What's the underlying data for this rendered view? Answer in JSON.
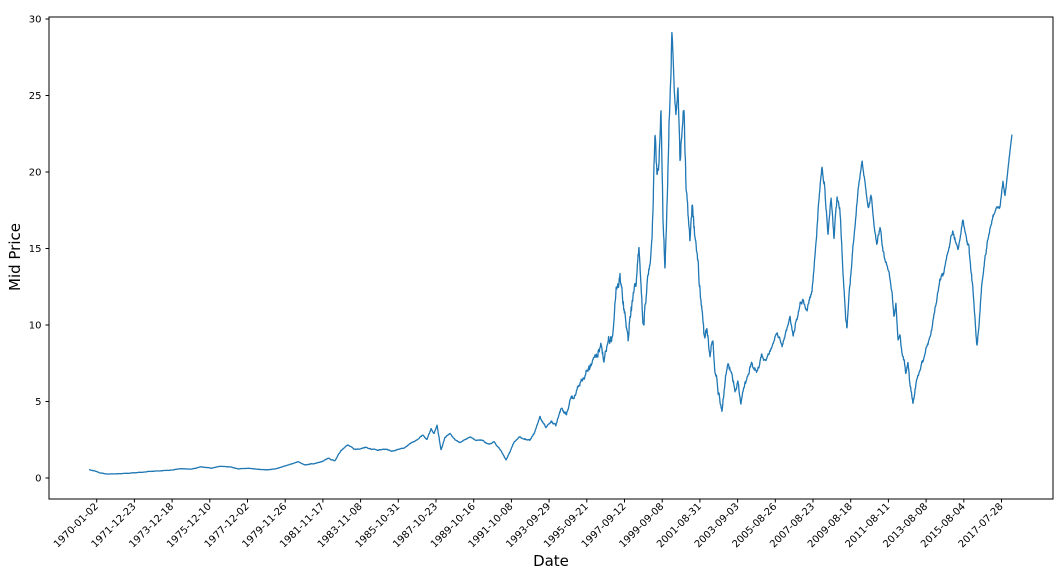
{
  "chart_data": {
    "type": "line",
    "title": "",
    "xlabel": "Date",
    "ylabel": "Mid Price",
    "grid": false,
    "legend": "none",
    "background_color": "#ffffff",
    "axis_color": "#000000",
    "tick_label_color": "#000000",
    "line_color": "#1f77b4",
    "y_ticks": [
      0,
      5,
      10,
      15,
      20,
      25,
      30
    ],
    "ylim": [
      -1.4,
      30.1
    ],
    "x_tick_labels": [
      "1970-01-02",
      "1971-12-23",
      "1973-12-18",
      "1975-12-10",
      "1977-12-02",
      "1979-11-26",
      "1981-11-17",
      "1983-11-08",
      "1985-10-31",
      "1987-10-23",
      "1989-10-16",
      "1991-10-08",
      "1993-09-29",
      "1995-09-21",
      "1997-09-12",
      "1999-09-08",
      "2001-08-31",
      "2003-09-03",
      "2005-08-26",
      "2007-08-23",
      "2009-08-18",
      "2011-08-11",
      "2013-08-08",
      "2015-08-04",
      "2017-07-28"
    ],
    "series": [
      {
        "name": "Mid Price",
        "x_start_label": "1970-01-02",
        "x_end_label": "2017-07-28",
        "anchors": [
          [
            0.0,
            0.55
          ],
          [
            0.0065,
            0.45
          ],
          [
            0.0119,
            0.33
          ],
          [
            0.0206,
            0.25
          ],
          [
            0.0314,
            0.27
          ],
          [
            0.0423,
            0.31
          ],
          [
            0.0553,
            0.37
          ],
          [
            0.0661,
            0.43
          ],
          [
            0.0791,
            0.48
          ],
          [
            0.0899,
            0.52
          ],
          [
            0.0997,
            0.62
          ],
          [
            0.1105,
            0.58
          ],
          [
            0.1213,
            0.73
          ],
          [
            0.1322,
            0.65
          ],
          [
            0.143,
            0.77
          ],
          [
            0.1538,
            0.72
          ],
          [
            0.1614,
            0.59
          ],
          [
            0.1723,
            0.64
          ],
          [
            0.1831,
            0.58
          ],
          [
            0.1939,
            0.53
          ],
          [
            0.2048,
            0.64
          ],
          [
            0.2156,
            0.84
          ],
          [
            0.2264,
            1.06
          ],
          [
            0.234,
            0.84
          ],
          [
            0.2448,
            0.95
          ],
          [
            0.2524,
            1.06
          ],
          [
            0.2589,
            1.28
          ],
          [
            0.2665,
            1.15
          ],
          [
            0.273,
            1.8
          ],
          [
            0.2806,
            2.15
          ],
          [
            0.2871,
            1.9
          ],
          [
            0.2936,
            1.85
          ],
          [
            0.3001,
            2.0
          ],
          [
            0.3066,
            1.9
          ],
          [
            0.3131,
            1.8
          ],
          [
            0.3207,
            1.9
          ],
          [
            0.3283,
            1.75
          ],
          [
            0.3348,
            1.85
          ],
          [
            0.3413,
            1.95
          ],
          [
            0.3478,
            2.25
          ],
          [
            0.3554,
            2.5
          ],
          [
            0.3619,
            2.8
          ],
          [
            0.3662,
            2.5
          ],
          [
            0.3706,
            3.25
          ],
          [
            0.3738,
            2.9
          ],
          [
            0.3771,
            3.45
          ],
          [
            0.3814,
            1.85
          ],
          [
            0.3857,
            2.65
          ],
          [
            0.3911,
            2.9
          ],
          [
            0.3966,
            2.5
          ],
          [
            0.402,
            2.35
          ],
          [
            0.4074,
            2.5
          ],
          [
            0.4128,
            2.7
          ],
          [
            0.4193,
            2.45
          ],
          [
            0.4258,
            2.5
          ],
          [
            0.4323,
            2.2
          ],
          [
            0.4388,
            2.35
          ],
          [
            0.4453,
            1.9
          ],
          [
            0.4518,
            1.2
          ],
          [
            0.4561,
            1.7
          ],
          [
            0.4605,
            2.3
          ],
          [
            0.4659,
            2.7
          ],
          [
            0.4713,
            2.5
          ],
          [
            0.4778,
            2.5
          ],
          [
            0.4832,
            3.0
          ],
          [
            0.4886,
            4.0
          ],
          [
            0.4951,
            3.3
          ],
          [
            0.5005,
            3.8
          ],
          [
            0.5059,
            3.4
          ],
          [
            0.5114,
            4.6
          ],
          [
            0.5168,
            4.2
          ],
          [
            0.5222,
            5.1
          ],
          [
            0.5276,
            5.7
          ],
          [
            0.533,
            6.3
          ],
          [
            0.5385,
            6.9
          ],
          [
            0.5439,
            7.5
          ],
          [
            0.5493,
            8.1
          ],
          [
            0.5547,
            8.6
          ],
          [
            0.558,
            7.8
          ],
          [
            0.5623,
            9.2
          ],
          [
            0.5666,
            8.8
          ],
          [
            0.571,
            12.5
          ],
          [
            0.5753,
            13.5
          ],
          [
            0.5796,
            11.0
          ],
          [
            0.584,
            9.4
          ],
          [
            0.5883,
            11.5
          ],
          [
            0.5926,
            13.0
          ],
          [
            0.5959,
            15.6
          ],
          [
            0.6002,
            10.3
          ],
          [
            0.6035,
            11.8
          ],
          [
            0.6067,
            13.5
          ],
          [
            0.61,
            15.5
          ],
          [
            0.6132,
            22.3
          ],
          [
            0.6154,
            19.5
          ],
          [
            0.6175,
            21.0
          ],
          [
            0.6197,
            24.5
          ],
          [
            0.6219,
            17.0
          ],
          [
            0.624,
            13.8
          ],
          [
            0.6262,
            17.5
          ],
          [
            0.6284,
            23.0
          ],
          [
            0.6305,
            26.5
          ],
          [
            0.6316,
            29.2
          ],
          [
            0.6338,
            26.0
          ],
          [
            0.636,
            23.5
          ],
          [
            0.6381,
            25.3
          ],
          [
            0.6403,
            21.0
          ],
          [
            0.6424,
            22.8
          ],
          [
            0.6446,
            23.8
          ],
          [
            0.6468,
            19.3
          ],
          [
            0.6489,
            17.2
          ],
          [
            0.6511,
            16.0
          ],
          [
            0.6533,
            18.5
          ],
          [
            0.6554,
            17.0
          ],
          [
            0.6587,
            14.3
          ],
          [
            0.6619,
            12.5
          ],
          [
            0.6652,
            10.0
          ],
          [
            0.6674,
            9.0
          ],
          [
            0.6695,
            9.7
          ],
          [
            0.6728,
            8.1
          ],
          [
            0.676,
            9.0
          ],
          [
            0.6782,
            6.9
          ],
          [
            0.6814,
            5.7
          ],
          [
            0.6858,
            4.4
          ],
          [
            0.689,
            6.2
          ],
          [
            0.6923,
            7.4
          ],
          [
            0.6966,
            6.6
          ],
          [
            0.6999,
            5.5
          ],
          [
            0.7031,
            6.2
          ],
          [
            0.7064,
            4.8
          ],
          [
            0.7096,
            6.0
          ],
          [
            0.7129,
            6.6
          ],
          [
            0.7183,
            7.4
          ],
          [
            0.7226,
            6.9
          ],
          [
            0.7259,
            7.2
          ],
          [
            0.7291,
            8.1
          ],
          [
            0.7324,
            7.6
          ],
          [
            0.7356,
            7.9
          ],
          [
            0.74,
            8.6
          ],
          [
            0.7454,
            9.5
          ],
          [
            0.7508,
            8.5
          ],
          [
            0.7541,
            9.2
          ],
          [
            0.7573,
            9.9
          ],
          [
            0.7595,
            10.6
          ],
          [
            0.7627,
            9.4
          ],
          [
            0.766,
            10.3
          ],
          [
            0.7693,
            11.1
          ],
          [
            0.7736,
            11.7
          ],
          [
            0.7779,
            11.0
          ],
          [
            0.7833,
            12.3
          ],
          [
            0.7866,
            14.5
          ],
          [
            0.7898,
            17.5
          ],
          [
            0.7942,
            20.2
          ],
          [
            0.7974,
            18.6
          ],
          [
            0.8007,
            15.9
          ],
          [
            0.8039,
            18.7
          ],
          [
            0.8072,
            16.0
          ],
          [
            0.8104,
            18.4
          ],
          [
            0.8137,
            17.3
          ],
          [
            0.8169,
            13.5
          ],
          [
            0.8191,
            11.2
          ],
          [
            0.8213,
            9.9
          ],
          [
            0.8234,
            12.1
          ],
          [
            0.8267,
            14.3
          ],
          [
            0.8299,
            16.3
          ],
          [
            0.8332,
            18.8
          ],
          [
            0.8375,
            20.7
          ],
          [
            0.8407,
            19.4
          ],
          [
            0.844,
            17.6
          ],
          [
            0.8472,
            18.7
          ],
          [
            0.8505,
            16.6
          ],
          [
            0.8537,
            15.3
          ],
          [
            0.857,
            16.4
          ],
          [
            0.8602,
            14.9
          ],
          [
            0.8635,
            14.0
          ],
          [
            0.8667,
            13.4
          ],
          [
            0.87,
            12.1
          ],
          [
            0.8721,
            10.5
          ],
          [
            0.8743,
            11.3
          ],
          [
            0.8765,
            9.1
          ],
          [
            0.8786,
            9.4
          ],
          [
            0.8808,
            8.1
          ],
          [
            0.883,
            7.6
          ],
          [
            0.8851,
            7.0
          ],
          [
            0.8873,
            7.7
          ],
          [
            0.8894,
            6.1
          ],
          [
            0.8927,
            5.0
          ],
          [
            0.897,
            6.3
          ],
          [
            0.9014,
            7.3
          ],
          [
            0.9057,
            8.0
          ],
          [
            0.909,
            8.8
          ],
          [
            0.9122,
            9.6
          ],
          [
            0.9155,
            10.8
          ],
          [
            0.9187,
            11.8
          ],
          [
            0.922,
            13.0
          ],
          [
            0.9263,
            13.6
          ],
          [
            0.9306,
            14.8
          ],
          [
            0.9339,
            15.9
          ],
          [
            0.936,
            16.3
          ],
          [
            0.9393,
            15.4
          ],
          [
            0.9415,
            15.0
          ],
          [
            0.9447,
            16.2
          ],
          [
            0.9469,
            16.8
          ],
          [
            0.9501,
            15.8
          ],
          [
            0.9534,
            14.9
          ],
          [
            0.9566,
            13.0
          ],
          [
            0.9599,
            10.5
          ],
          [
            0.9621,
            8.7
          ],
          [
            0.9642,
            10.0
          ],
          [
            0.9664,
            12.0
          ],
          [
            0.9696,
            13.8
          ],
          [
            0.9729,
            15.2
          ],
          [
            0.9762,
            16.2
          ],
          [
            0.9794,
            16.9
          ],
          [
            0.9827,
            17.5
          ],
          [
            0.987,
            17.9
          ],
          [
            0.9902,
            19.3
          ],
          [
            0.9924,
            18.4
          ],
          [
            0.9946,
            19.6
          ],
          [
            0.9968,
            20.8
          ],
          [
            1.0,
            22.4
          ]
        ],
        "volatility": [
          [
            0.0,
            0.02
          ],
          [
            0.22,
            0.03
          ],
          [
            0.27,
            0.06
          ],
          [
            0.33,
            0.05
          ],
          [
            0.37,
            0.08
          ],
          [
            0.41,
            0.06
          ],
          [
            0.45,
            0.07
          ],
          [
            0.48,
            0.12
          ],
          [
            0.51,
            0.22
          ],
          [
            0.54,
            0.45
          ],
          [
            0.565,
            0.7
          ],
          [
            0.585,
            0.85
          ],
          [
            0.6,
            1.0
          ],
          [
            0.615,
            1.1
          ],
          [
            0.628,
            0.85
          ],
          [
            0.64,
            1.1
          ],
          [
            0.655,
            1.15
          ],
          [
            0.67,
            0.75
          ],
          [
            0.685,
            0.5
          ],
          [
            0.7,
            0.45
          ],
          [
            0.715,
            0.4
          ],
          [
            0.73,
            0.3
          ],
          [
            0.75,
            0.28
          ],
          [
            0.77,
            0.35
          ],
          [
            0.79,
            0.45
          ],
          [
            0.81,
            0.55
          ],
          [
            0.825,
            0.5
          ],
          [
            0.84,
            0.45
          ],
          [
            0.86,
            0.38
          ],
          [
            0.88,
            0.38
          ],
          [
            0.9,
            0.35
          ],
          [
            0.92,
            0.35
          ],
          [
            0.94,
            0.4
          ],
          [
            0.957,
            0.45
          ],
          [
            0.97,
            0.4
          ],
          [
            0.985,
            0.3
          ],
          [
            1.0,
            0.22
          ]
        ]
      }
    ]
  }
}
